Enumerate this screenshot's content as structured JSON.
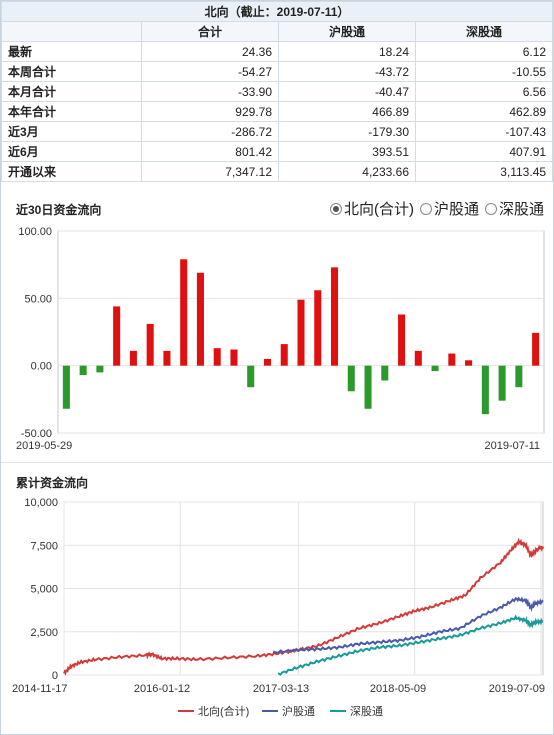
{
  "table": {
    "title": "北向（截止：2019-07-11）",
    "columns": [
      "合计",
      "沪股通",
      "深股通"
    ],
    "rows": [
      {
        "label": "最新",
        "values": [
          "24.36",
          "18.24",
          "6.12"
        ]
      },
      {
        "label": "本周合计",
        "values": [
          "-54.27",
          "-43.72",
          "-10.55"
        ]
      },
      {
        "label": "本月合计",
        "values": [
          "-33.90",
          "-40.47",
          "6.56"
        ]
      },
      {
        "label": "本年合计",
        "values": [
          "929.78",
          "466.89",
          "462.89"
        ]
      },
      {
        "label": "近3月",
        "values": [
          "-286.72",
          "-179.30",
          "-107.43"
        ]
      },
      {
        "label": "近6月",
        "values": [
          "801.42",
          "393.51",
          "407.91"
        ]
      },
      {
        "label": "开通以来",
        "values": [
          "7,347.12",
          "4,233.66",
          "3,113.45"
        ]
      }
    ]
  },
  "flow_panel": {
    "title": "近30日资金流向",
    "options": [
      "北向(合计)",
      "沪股通",
      "深股通"
    ],
    "selected": 0
  },
  "cum_panel": {
    "title": "累计资金流向"
  },
  "colors": {
    "positive": "#e01010",
    "negative": "#2a9a2a",
    "north": "#d43a3a",
    "sh": "#4a5aa8",
    "sz": "#1a9a9a",
    "grid": "#e4e4e4"
  },
  "chart_data": [
    {
      "type": "bar",
      "title": "近30日资金流向",
      "ylim": [
        -50,
        100
      ],
      "yticks": [
        "100.00",
        "50.00",
        "0.00",
        "-50.00"
      ],
      "ytick_values": [
        100,
        50,
        0,
        -50
      ],
      "x_start_label": "2019-05-29",
      "x_end_label": "2019-07-11",
      "values": [
        -32,
        -7,
        -5,
        44,
        11,
        31,
        11,
        79,
        69,
        13,
        12,
        -16,
        5,
        16,
        49,
        56,
        73,
        -19,
        -32,
        -11,
        38,
        11,
        -4,
        9,
        4,
        -36,
        -26,
        -16,
        24.36
      ]
    },
    {
      "type": "line",
      "title": "累计资金流向",
      "ylim": [
        0,
        10000
      ],
      "yticks": [
        "10,000",
        "7,500",
        "5,000",
        "2,500",
        "0"
      ],
      "ytick_values": [
        10000,
        7500,
        5000,
        2500,
        0
      ],
      "xticks": [
        "2014-11-17",
        "2016-01-12",
        "2017-03-13",
        "2018-05-09",
        "2019-07-09"
      ],
      "series": [
        {
          "name": "北向(合计)",
          "points": [
            [
              2014.88,
              100
            ],
            [
              2014.95,
              500
            ],
            [
              2015.05,
              750
            ],
            [
              2015.2,
              900
            ],
            [
              2015.45,
              1050
            ],
            [
              2015.7,
              1150
            ],
            [
              2015.75,
              1200
            ],
            [
              2015.85,
              950
            ],
            [
              2016.0,
              950
            ],
            [
              2016.2,
              900
            ],
            [
              2016.5,
              1000
            ],
            [
              2016.8,
              1100
            ],
            [
              2017.0,
              1250
            ],
            [
              2017.2,
              1450
            ],
            [
              2017.4,
              1700
            ],
            [
              2017.6,
              2200
            ],
            [
              2017.8,
              2700
            ],
            [
              2018.0,
              3000
            ],
            [
              2018.2,
              3400
            ],
            [
              2018.35,
              3700
            ],
            [
              2018.5,
              3900
            ],
            [
              2018.7,
              4300
            ],
            [
              2018.85,
              4600
            ],
            [
              2019.0,
              5600
            ],
            [
              2019.2,
              6500
            ],
            [
              2019.3,
              7200
            ],
            [
              2019.38,
              7700
            ],
            [
              2019.45,
              7500
            ],
            [
              2019.5,
              6900
            ],
            [
              2019.55,
              7200
            ],
            [
              2019.6,
              7400
            ],
            [
              2019.62,
              7350
            ]
          ]
        },
        {
          "name": "沪股通",
          "points": [
            [
              2016.95,
              1300
            ],
            [
              2017.2,
              1450
            ],
            [
              2017.4,
              1500
            ],
            [
              2017.6,
              1600
            ],
            [
              2017.8,
              1800
            ],
            [
              2018.0,
              1900
            ],
            [
              2018.2,
              2000
            ],
            [
              2018.4,
              2200
            ],
            [
              2018.6,
              2500
            ],
            [
              2018.8,
              2700
            ],
            [
              2019.0,
              3400
            ],
            [
              2019.2,
              3900
            ],
            [
              2019.35,
              4400
            ],
            [
              2019.45,
              4300
            ],
            [
              2019.5,
              3900
            ],
            [
              2019.55,
              4150
            ],
            [
              2019.62,
              4230
            ]
          ]
        },
        {
          "name": "深股通",
          "points": [
            [
              2017.0,
              50
            ],
            [
              2017.2,
              450
            ],
            [
              2017.4,
              800
            ],
            [
              2017.6,
              1100
            ],
            [
              2017.8,
              1400
            ],
            [
              2018.0,
              1600
            ],
            [
              2018.2,
              1700
            ],
            [
              2018.4,
              1900
            ],
            [
              2018.6,
              2100
            ],
            [
              2018.8,
              2300
            ],
            [
              2019.0,
              2700
            ],
            [
              2019.2,
              3000
            ],
            [
              2019.35,
              3300
            ],
            [
              2019.45,
              3150
            ],
            [
              2019.5,
              2900
            ],
            [
              2019.55,
              3050
            ],
            [
              2019.62,
              3110
            ]
          ]
        }
      ]
    }
  ]
}
